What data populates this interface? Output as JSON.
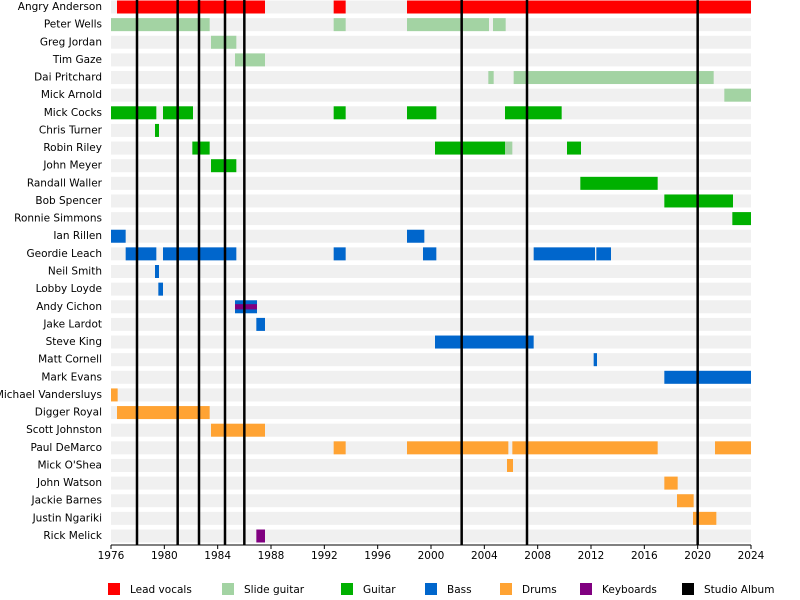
{
  "chart_data": {
    "type": "timeline",
    "categories": [
      "Angry Anderson",
      "Peter Wells",
      "Greg Jordan",
      "Tim Gaze",
      "Dai Pritchard",
      "Mick Arnold",
      "Mick Cocks",
      "Chris Turner",
      "Robin Riley",
      "John Meyer",
      "Randall Waller",
      "Bob Spencer",
      "Ronnie Simmons",
      "Ian Rillen",
      "Geordie Leach",
      "Neil Smith",
      "Lobby Loyde",
      "Andy Cichon",
      "Jake Lardot",
      "Steve King",
      "Matt Cornell",
      "Mark Evans",
      "Michael Vandersluys",
      "Digger Royal",
      "Scott Johnston",
      "Paul DeMarco",
      "Mick O'Shea",
      "John Watson",
      "Jackie Barnes",
      "Justin Ngariki",
      "Rick Melick"
    ],
    "series": [
      {
        "name": "Lead vocals",
        "color": "#ff0000",
        "values": [
          [
            [
              1976.45,
              1987.55
            ],
            [
              1992.7,
              1993.6
            ],
            [
              1998.2,
              2024
            ]
          ],
          null,
          null,
          null,
          null,
          null,
          null,
          null,
          null,
          null,
          null,
          null,
          null,
          null,
          null,
          null,
          null,
          null,
          null,
          null,
          null,
          null,
          null,
          null,
          null,
          null,
          null,
          null,
          null,
          null,
          null
        ]
      },
      {
        "name": "Slide guitar",
        "color": "#a3d3a3",
        "values": [
          null,
          [
            [
              1976,
              1983.4
            ],
            [
              1992.7,
              1993.6
            ],
            [
              1998.2,
              2004.35
            ],
            [
              2004.65,
              2005.6
            ]
          ],
          [
            [
              1983.5,
              1985.4
            ]
          ],
          [
            [
              1985.3,
              1987.55
            ]
          ],
          [
            [
              2004.3,
              2004.7
            ],
            [
              2006.2,
              2021.2
            ]
          ],
          [
            [
              2022,
              2024
            ]
          ],
          null,
          null,
          [
            [
              2005.55,
              2006.1
            ]
          ],
          null,
          null,
          null,
          null,
          null,
          null,
          null,
          null,
          null,
          null,
          null,
          null,
          null,
          null,
          null,
          null,
          null,
          null,
          null,
          null,
          null,
          null
        ]
      },
      {
        "name": "Guitar",
        "color": "#00b000",
        "values": [
          null,
          null,
          null,
          null,
          null,
          null,
          [
            [
              1976,
              1979.4
            ],
            [
              1979.9,
              1982.15
            ],
            [
              1992.7,
              1993.6
            ],
            [
              1998.2,
              2000.4
            ],
            [
              2005.55,
              2009.8
            ]
          ],
          [
            [
              1979.3,
              1979.6
            ]
          ],
          [
            [
              1982.1,
              1983.4
            ],
            [
              2000.3,
              2005.55
            ],
            [
              2010.2,
              2011.25
            ]
          ],
          [
            [
              1983.5,
              1985.4
            ]
          ],
          [
            [
              2011.2,
              2017
            ]
          ],
          [
            [
              2017.5,
              2022.65
            ]
          ],
          [
            [
              2022.6,
              2024
            ]
          ],
          null,
          null,
          null,
          null,
          null,
          null,
          null,
          null,
          null,
          null,
          null,
          null,
          null,
          null,
          null,
          null,
          null,
          null
        ]
      },
      {
        "name": "Bass",
        "color": "#0066cc",
        "values": [
          null,
          null,
          null,
          null,
          null,
          null,
          null,
          null,
          null,
          null,
          null,
          null,
          null,
          [
            [
              1976,
              1977.1
            ],
            [
              1998.2,
              1999.5
            ]
          ],
          [
            [
              1977.1,
              1979.4
            ],
            [
              1979.9,
              1985.4
            ],
            [
              1992.7,
              1993.6
            ],
            [
              1999.4,
              2000.4
            ],
            [
              2007.7,
              2012.3
            ],
            [
              2012.4,
              2013.5
            ]
          ],
          [
            [
              1979.3,
              1979.6
            ]
          ],
          [
            [
              1979.55,
              1979.9
            ]
          ],
          [
            [
              1985.3,
              1986.95
            ]
          ],
          [
            [
              1986.9,
              1987.55
            ]
          ],
          [
            [
              2000.3,
              2007.7
            ]
          ],
          [
            [
              2012.2,
              2012.45
            ]
          ],
          [
            [
              2017.5,
              2024
            ]
          ],
          null,
          null,
          null,
          null,
          null,
          null,
          null,
          null,
          null
        ]
      },
      {
        "name": "Drums",
        "color": "#ffa333",
        "values": [
          null,
          null,
          null,
          null,
          null,
          null,
          null,
          null,
          null,
          null,
          null,
          null,
          null,
          null,
          null,
          null,
          null,
          null,
          null,
          null,
          null,
          null,
          [
            [
              1976,
              1976.5
            ]
          ],
          [
            [
              1976.45,
              1983.4
            ]
          ],
          [
            [
              1983.5,
              1987.55
            ]
          ],
          [
            [
              1992.7,
              1993.6
            ],
            [
              1998.2,
              2005.8
            ],
            [
              2006.1,
              2017
            ],
            [
              2021.3,
              2024
            ]
          ],
          [
            [
              2005.7,
              2006.15
            ]
          ],
          [
            [
              2017.5,
              2018.5
            ]
          ],
          [
            [
              2018.45,
              2019.7
            ]
          ],
          [
            [
              2019.65,
              2021.4
            ]
          ],
          null
        ]
      },
      {
        "name": "Keyboards",
        "color": "#800080",
        "values": [
          null,
          null,
          null,
          null,
          null,
          null,
          null,
          null,
          null,
          null,
          null,
          null,
          null,
          null,
          null,
          null,
          null,
          [
            [
              1985.3,
              1986.95
            ]
          ],
          null,
          null,
          null,
          null,
          null,
          null,
          null,
          null,
          null,
          null,
          null,
          null,
          [
            [
              1986.9,
              1987.55
            ]
          ]
        ]
      }
    ],
    "markers": {
      "name": "Studio Album",
      "color": "#000000",
      "x": [
        1977.95,
        1981.0,
        1982.6,
        1984.55,
        1986.0,
        2002.3,
        2007.2,
        2020.0
      ]
    },
    "xlim": [
      1976,
      2024
    ],
    "xticks": [
      1976,
      1980,
      1984,
      1988,
      1992,
      1996,
      2000,
      2004,
      2008,
      2012,
      2016,
      2020,
      2024
    ]
  }
}
